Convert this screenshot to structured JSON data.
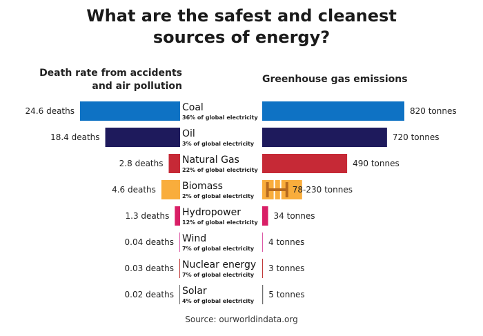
{
  "title_line1": "What are the safest and cleanest",
  "title_line2": "sources of energy?",
  "left_header_line1": "Death rate from accidents",
  "left_header_line2": "and air pollution",
  "right_header": "Greenhouse gas emissions",
  "source": "Source: ourworldindata.org",
  "chart_data": {
    "type": "bar",
    "categories": [
      "Coal",
      "Oil",
      "Natural Gas",
      "Biomass",
      "Hydropower",
      "Wind",
      "Nuclear energy",
      "Solar"
    ],
    "shares": [
      "36% of global electricity",
      "3% of global electricity",
      "22% of global electricity",
      "2% of global electricity",
      "12% of global electricity",
      "7% of global electricity",
      "7% of global electricity",
      "4% of global electricity"
    ],
    "series": [
      {
        "name": "Death rate from accidents and air pollution",
        "values": [
          24.6,
          18.4,
          2.8,
          4.6,
          1.3,
          0.04,
          0.03,
          0.02
        ],
        "labels": [
          "24.6 deaths",
          "18.4 deaths",
          "2.8 deaths",
          "4.6 deaths",
          "1.3 deaths",
          "0.04 deaths",
          "0.03 deaths",
          "0.02 deaths"
        ]
      },
      {
        "name": "Greenhouse gas emissions",
        "values": [
          820,
          720,
          490,
          230,
          34,
          4,
          3,
          5
        ],
        "range_low": [
          null,
          null,
          null,
          78,
          null,
          null,
          null,
          null
        ],
        "labels": [
          "820 tonnes",
          "720 tonnes",
          "490 tonnes",
          "78-230 tonnes",
          "34 tonnes",
          "4 tonnes",
          "3 tonnes",
          "5 tonnes"
        ]
      }
    ],
    "colors": [
      "#0e72c4",
      "#1e1a5c",
      "#c62936",
      "#f9ad3c",
      "#d91f66",
      "#dd5aa6",
      "#c03a3a",
      "#6e6e6e"
    ],
    "range_color": "#b76a1e"
  }
}
